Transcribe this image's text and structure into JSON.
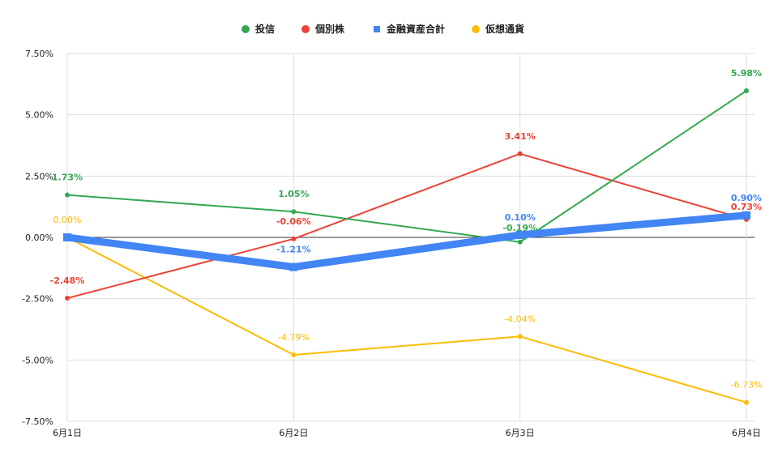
{
  "chart_data": {
    "type": "line",
    "title": "",
    "xlabel": "",
    "ylabel": "",
    "categories": [
      "6月1日",
      "6月2日",
      "6月3日",
      "6月4日"
    ],
    "ylim": [
      -7.5,
      7.5
    ],
    "yticks": [
      7.5,
      5.0,
      2.5,
      0.0,
      -2.5,
      -5.0,
      -7.5
    ],
    "ytick_labels": [
      "7.50%",
      "5.00%",
      "2.50%",
      "0.00%",
      "-2.50%",
      "-5.00%",
      "-7.50%"
    ],
    "grid": true,
    "legend_position": "top-center",
    "series": [
      {
        "name": "投信",
        "color": "#34a853",
        "marker": "circle",
        "values": [
          1.73,
          1.05,
          -0.19,
          5.98
        ],
        "labels": [
          "1.73%",
          "1.05%",
          "-0.19%",
          "5.98%"
        ]
      },
      {
        "name": "個別株",
        "color": "#ea4335",
        "marker": "circle",
        "values": [
          -2.48,
          -0.06,
          3.41,
          0.73
        ],
        "labels": [
          "-2.48%",
          "-0.06%",
          "3.41%",
          "0.73%"
        ]
      },
      {
        "name": "金融資産合計",
        "color": "#4285f4",
        "marker": "square",
        "values": [
          0.0,
          -1.21,
          0.1,
          0.9
        ],
        "labels": [
          "",
          "-1.21%",
          "0.10%",
          "0.90%"
        ]
      },
      {
        "name": "仮想通貨",
        "color": "#fbbc04",
        "marker": "circle",
        "values": [
          0.0,
          -4.79,
          -4.04,
          -6.73
        ],
        "labels": [
          "0.00%",
          "-4.79%",
          "-4.04%",
          "-6.73%"
        ]
      }
    ]
  }
}
